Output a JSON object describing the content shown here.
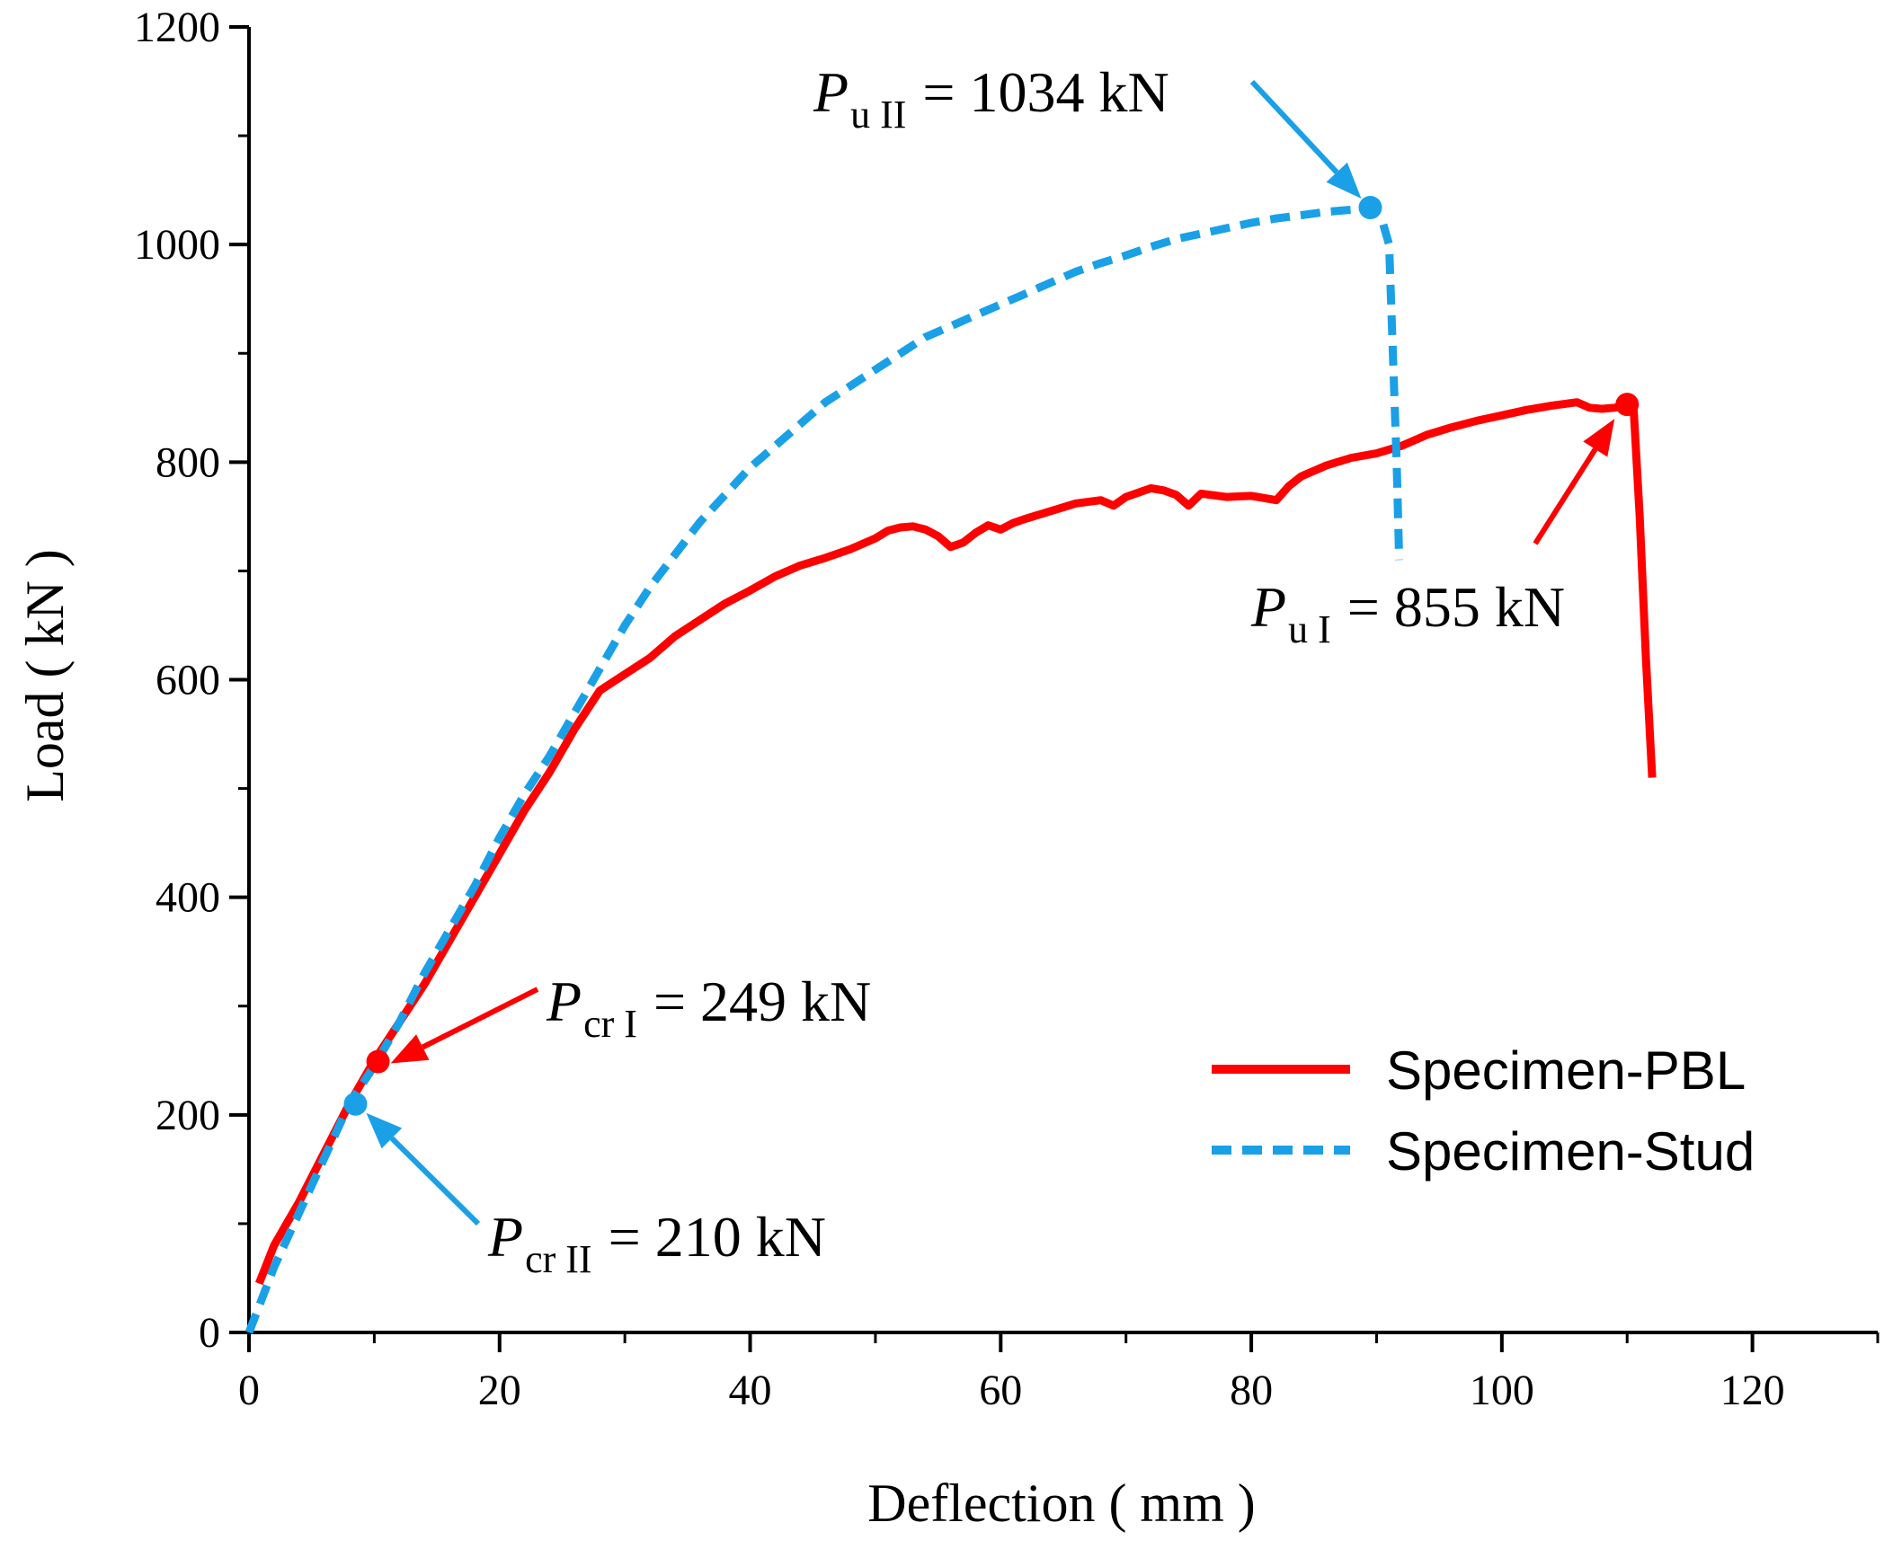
{
  "colors": {
    "pbl": "#ff0000",
    "stud": "#1aa0e6",
    "axis": "#000000"
  },
  "chart_data": {
    "type": "line",
    "xlabel": "Deflection ( mm )",
    "ylabel": "Load ( kN )",
    "xlim": [
      0,
      130
    ],
    "ylim": [
      0,
      1200
    ],
    "xticks": [
      0,
      20,
      40,
      60,
      80,
      100,
      120
    ],
    "yticks": [
      0,
      200,
      400,
      600,
      800,
      1000,
      1200
    ],
    "xtick_labels": [
      "0",
      "20",
      "40",
      "60",
      "80",
      "100",
      "120"
    ],
    "ytick_labels": [
      "0",
      "200",
      "400",
      "600",
      "800",
      "1000",
      "1200"
    ],
    "legend_position": "bottom-right",
    "series": [
      {
        "name": "Specimen-PBL",
        "style": "solid",
        "x": [
          0.8,
          2,
          4,
          6,
          8,
          10,
          12,
          14,
          16,
          18,
          20,
          22,
          24,
          26,
          28,
          30,
          32,
          34,
          36,
          38,
          40,
          42,
          44,
          46,
          48,
          50,
          51,
          52,
          53,
          54,
          55,
          56,
          57,
          58,
          59,
          60,
          61,
          62,
          64,
          66,
          68,
          69,
          70,
          71,
          72,
          73,
          74,
          75,
          76,
          78,
          80,
          82,
          83,
          84,
          86,
          88,
          90,
          92,
          94,
          96,
          98,
          100,
          102,
          104,
          106,
          107,
          108,
          109,
          110,
          110.5,
          111,
          111.5,
          112
        ],
        "y": [
          45,
          80,
          120,
          165,
          210,
          250,
          285,
          320,
          360,
          400,
          440,
          480,
          515,
          555,
          590,
          605,
          620,
          640,
          655,
          670,
          682,
          695,
          705,
          712,
          720,
          730,
          737,
          740,
          741,
          738,
          732,
          722,
          726,
          735,
          742,
          738,
          744,
          748,
          755,
          762,
          765,
          760,
          768,
          772,
          776,
          774,
          770,
          760,
          771,
          768,
          769,
          765,
          778,
          787,
          797,
          804,
          808,
          815,
          825,
          832,
          838,
          843,
          848,
          852,
          855,
          850,
          849,
          850,
          853,
          853,
          750,
          620,
          510
        ]
      },
      {
        "name": "Specimen-Stud",
        "style": "dashed",
        "x": [
          0,
          2,
          4,
          6,
          8,
          10,
          12,
          14,
          16,
          18,
          20,
          22,
          24,
          26,
          28,
          30,
          32,
          34,
          36,
          38,
          40,
          42,
          44,
          46,
          48,
          50,
          52,
          54,
          56,
          58,
          60,
          62,
          64,
          66,
          68,
          70,
          72,
          74,
          76,
          78,
          80,
          82,
          84,
          86,
          88,
          89.5,
          90.5,
          91,
          91.3,
          91.6,
          91.8
        ],
        "y": [
          0,
          60,
          110,
          160,
          210,
          245,
          285,
          330,
          370,
          410,
          455,
          495,
          530,
          570,
          610,
          650,
          685,
          715,
          745,
          770,
          795,
          815,
          835,
          855,
          870,
          885,
          900,
          915,
          925,
          935,
          945,
          955,
          965,
          975,
          983,
          990,
          998,
          1005,
          1010,
          1015,
          1020,
          1024,
          1027,
          1030,
          1032,
          1034,
          1020,
          1000,
          900,
          800,
          710
        ]
      }
    ],
    "markers": [
      {
        "series": "Specimen-PBL",
        "x": 10.3,
        "y": 249
      },
      {
        "series": "Specimen-PBL",
        "x": 110,
        "y": 853
      },
      {
        "series": "Specimen-Stud",
        "x": 8.5,
        "y": 210
      },
      {
        "series": "Specimen-Stud",
        "x": 89.5,
        "y": 1034
      }
    ],
    "annotations": [
      {
        "symbol": "P",
        "sub": "u II",
        "rest": "= 1034 kN",
        "color_key": "stud"
      },
      {
        "symbol": "P",
        "sub": "u I",
        "rest": "= 855 kN",
        "color_key": "pbl"
      },
      {
        "symbol": "P",
        "sub": "cr I",
        "rest": "= 249 kN",
        "color_key": "pbl"
      },
      {
        "symbol": "P",
        "sub": "cr II",
        "rest": "= 210 kN",
        "color_key": "stud"
      }
    ]
  }
}
